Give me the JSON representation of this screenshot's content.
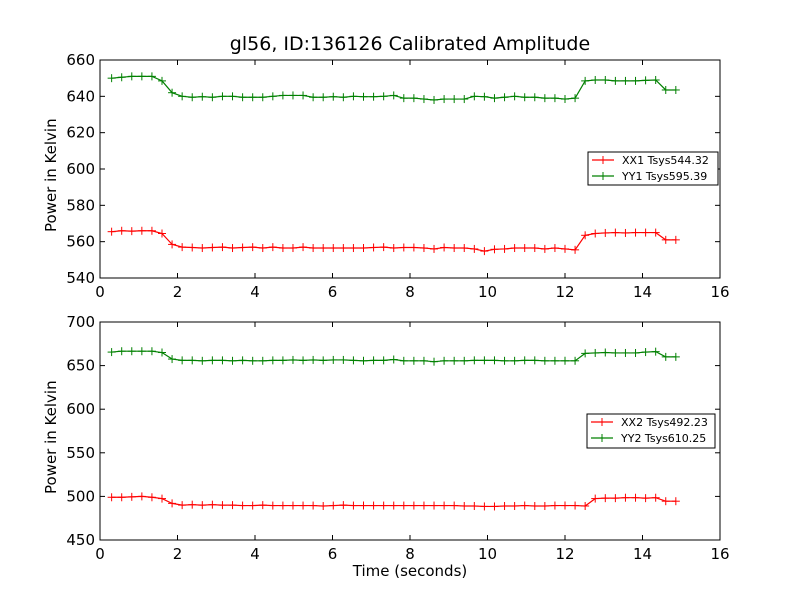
{
  "chart_data": [
    {
      "type": "line",
      "title": "gl56, ID:136126 Calibrated Amplitude",
      "xlabel": "Time (seconds)",
      "ylabel": "Power in Kelvin",
      "xlim": [
        0,
        16
      ],
      "ylim": [
        540,
        660
      ],
      "xticks": [
        "0",
        "2",
        "4",
        "6",
        "8",
        "10",
        "12",
        "14",
        "16"
      ],
      "yticks": [
        "540",
        "560",
        "580",
        "600",
        "620",
        "640",
        "660"
      ],
      "legend_position": "center-right",
      "grid": false,
      "x": [
        0.3,
        0.56,
        0.82,
        1.08,
        1.34,
        1.6,
        1.86,
        2.12,
        2.38,
        2.64,
        2.9,
        3.16,
        3.42,
        3.68,
        3.94,
        4.2,
        4.46,
        4.72,
        4.98,
        5.24,
        5.5,
        5.76,
        6.02,
        6.28,
        6.54,
        6.8,
        7.06,
        7.32,
        7.58,
        7.84,
        8.1,
        8.36,
        8.62,
        8.88,
        9.14,
        9.4,
        9.66,
        9.92,
        10.18,
        10.44,
        10.7,
        10.96,
        11.22,
        11.48,
        11.74,
        12.0,
        12.26,
        12.52,
        12.78,
        13.04,
        13.3,
        13.56,
        13.82,
        14.08,
        14.34,
        14.6,
        14.86
      ],
      "series": [
        {
          "name": "XX1 Tsys544.32",
          "color": "#ff0000",
          "values": [
            565.5,
            566.0,
            565.8,
            566.0,
            566.0,
            564.5,
            558.5,
            557.0,
            556.8,
            556.5,
            556.8,
            557.0,
            556.5,
            556.8,
            557.0,
            556.5,
            557.0,
            556.5,
            556.5,
            557.0,
            556.5,
            556.5,
            556.5,
            556.5,
            556.5,
            556.5,
            556.8,
            557.0,
            556.5,
            556.8,
            556.8,
            556.5,
            556.0,
            556.8,
            556.5,
            556.5,
            556.0,
            554.8,
            555.8,
            556.0,
            556.5,
            556.5,
            556.5,
            556.0,
            556.5,
            556.0,
            555.5,
            563.5,
            564.5,
            564.8,
            565.0,
            564.8,
            565.0,
            565.0,
            565.0,
            561.0,
            561.0
          ]
        },
        {
          "name": "YY1 Tsys595.39",
          "color": "#008000",
          "values": [
            650.0,
            650.5,
            651.0,
            651.0,
            651.0,
            648.5,
            642.0,
            640.0,
            639.5,
            639.8,
            639.5,
            640.0,
            640.0,
            639.5,
            639.5,
            639.5,
            640.0,
            640.5,
            640.5,
            640.5,
            639.5,
            639.5,
            639.8,
            639.5,
            640.0,
            639.8,
            639.8,
            640.0,
            640.5,
            639.0,
            639.0,
            638.5,
            638.0,
            638.5,
            638.5,
            638.5,
            640.0,
            639.8,
            639.0,
            639.5,
            640.0,
            639.5,
            639.5,
            639.0,
            639.0,
            638.5,
            639.0,
            648.5,
            649.0,
            649.0,
            648.5,
            648.5,
            648.5,
            648.8,
            649.0,
            643.5,
            643.5
          ]
        }
      ]
    },
    {
      "type": "line",
      "xlabel": "Time (seconds)",
      "ylabel": "Power in Kelvin",
      "xlim": [
        0,
        16
      ],
      "ylim": [
        450,
        700
      ],
      "xticks": [
        "0",
        "2",
        "4",
        "6",
        "8",
        "10",
        "12",
        "14",
        "16"
      ],
      "yticks": [
        "450",
        "500",
        "550",
        "600",
        "650",
        "700"
      ],
      "legend_position": "center-right",
      "grid": false,
      "x": [
        0.3,
        0.56,
        0.82,
        1.08,
        1.34,
        1.6,
        1.86,
        2.12,
        2.38,
        2.64,
        2.9,
        3.16,
        3.42,
        3.68,
        3.94,
        4.2,
        4.46,
        4.72,
        4.98,
        5.24,
        5.5,
        5.76,
        6.02,
        6.28,
        6.54,
        6.8,
        7.06,
        7.32,
        7.58,
        7.84,
        8.1,
        8.36,
        8.62,
        8.88,
        9.14,
        9.4,
        9.66,
        9.92,
        10.18,
        10.44,
        10.7,
        10.96,
        11.22,
        11.48,
        11.74,
        12.0,
        12.26,
        12.52,
        12.78,
        13.04,
        13.3,
        13.56,
        13.82,
        14.08,
        14.34,
        14.6,
        14.86
      ],
      "series": [
        {
          "name": "XX2 Tsys492.23",
          "color": "#ff0000",
          "values": [
            499.0,
            499.0,
            499.5,
            500.0,
            499.0,
            497.5,
            492.0,
            490.0,
            490.5,
            490.0,
            490.5,
            490.0,
            490.0,
            489.5,
            489.5,
            490.0,
            489.5,
            489.5,
            489.5,
            489.5,
            489.5,
            489.0,
            489.5,
            490.0,
            489.5,
            489.5,
            489.5,
            489.5,
            489.5,
            489.5,
            489.5,
            489.5,
            489.5,
            489.5,
            489.5,
            489.0,
            489.0,
            488.5,
            488.5,
            489.0,
            489.0,
            489.5,
            489.0,
            489.0,
            489.5,
            489.5,
            489.5,
            489.0,
            497.5,
            498.0,
            498.0,
            498.5,
            498.5,
            498.0,
            498.5,
            494.5,
            494.5
          ]
        },
        {
          "name": "YY2 Tsys610.25",
          "color": "#008000",
          "values": [
            665.5,
            666.5,
            666.5,
            666.5,
            666.5,
            665.0,
            657.5,
            656.0,
            656.0,
            655.5,
            656.0,
            656.0,
            655.5,
            656.0,
            655.5,
            655.5,
            656.0,
            656.0,
            656.5,
            656.0,
            656.5,
            656.0,
            656.5,
            656.5,
            656.0,
            655.5,
            656.0,
            656.0,
            657.0,
            655.5,
            655.5,
            655.5,
            654.5,
            655.5,
            655.5,
            655.5,
            656.0,
            656.0,
            656.0,
            655.5,
            655.5,
            656.0,
            656.0,
            655.5,
            655.5,
            655.5,
            655.5,
            664.0,
            664.5,
            665.0,
            664.5,
            664.5,
            664.5,
            665.5,
            666.0,
            660.0,
            660.0
          ]
        }
      ]
    }
  ]
}
